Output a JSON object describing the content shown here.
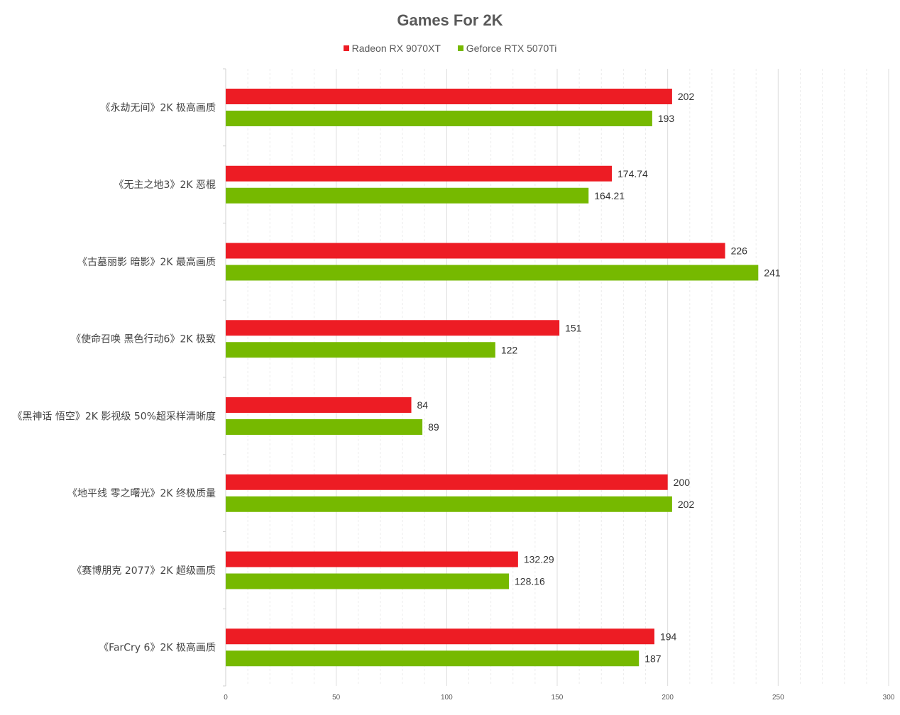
{
  "chart_data": {
    "type": "bar",
    "orientation": "horizontal",
    "title": "Games For 2K",
    "categories": [
      "《永劫无间》2K 极高画质",
      "《无主之地3》2K 恶棍",
      "《古墓丽影 暗影》2K 最高画质",
      "《使命召唤 黑色行动6》2K 极致",
      "《黑神话 悟空》2K 影视级 50%超采样清晰度",
      "《地平线 零之曙光》2K 终极质量",
      "《赛博朋克 2077》2K 超级画质",
      "《FarCry 6》2K 极高画质"
    ],
    "series": [
      {
        "name": "Radeon RX 9070XT",
        "color": "#ed1c24",
        "values": [
          202,
          174.74,
          226,
          151,
          84,
          200,
          132.29,
          194
        ],
        "labels": [
          "202",
          "174.74",
          "226",
          "151",
          "84",
          "200",
          "132.29",
          "194"
        ]
      },
      {
        "name": "Geforce RTX 5070Ti",
        "color": "#76b900",
        "values": [
          193,
          164.21,
          241,
          122,
          89,
          202,
          128.16,
          187
        ],
        "labels": [
          "193",
          "164.21",
          "241",
          "122",
          "89",
          "202",
          "128.16",
          "187"
        ]
      }
    ],
    "xlim": [
      0,
      300
    ],
    "xticks": [
      0,
      50,
      100,
      150,
      200,
      250,
      300
    ],
    "minor_tick_step": 10,
    "grid": true,
    "legend_position": "top-center",
    "xlabel": "",
    "ylabel": ""
  }
}
